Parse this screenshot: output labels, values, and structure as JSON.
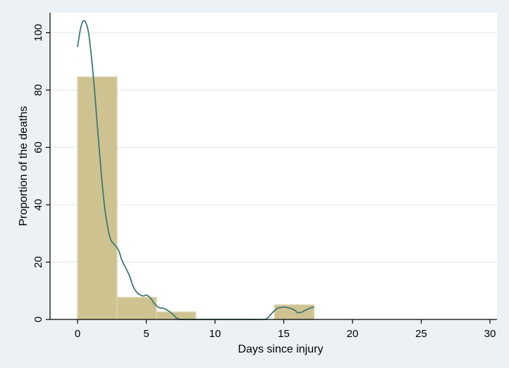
{
  "chart_data": {
    "type": "bar",
    "subtype": "histogram-with-density-line",
    "xlabel": "Days since injury",
    "ylabel": "Proportion of the deaths",
    "xlim": [
      -2,
      30
    ],
    "ylim": [
      0,
      105
    ],
    "xticks": [
      0,
      5,
      10,
      15,
      20,
      25,
      30
    ],
    "yticks": [
      0,
      20,
      40,
      60,
      80,
      100
    ],
    "grid": true,
    "bins": [
      {
        "x0": 0,
        "x1": 2.87,
        "value": 84.6
      },
      {
        "x0": 2.87,
        "x1": 5.73,
        "value": 7.7
      },
      {
        "x0": 5.73,
        "x1": 8.6,
        "value": 2.6
      },
      {
        "x0": 14.33,
        "x1": 17.2,
        "value": 5.1
      }
    ],
    "density_line": {
      "x": [
        0,
        0.2,
        0.4,
        0.6,
        0.8,
        1.0,
        1.2,
        1.4,
        1.6,
        1.8,
        2.0,
        2.2,
        2.4,
        2.6,
        2.8,
        3.0,
        3.2,
        3.5,
        3.8,
        4.0,
        4.3,
        4.6,
        4.8,
        5.0,
        5.3,
        5.6,
        5.9,
        6.3,
        6.6,
        7.0,
        7.2,
        7.5,
        8,
        10,
        12,
        13.5,
        13.8,
        14.2,
        14.6,
        15.0,
        15.4,
        15.8,
        16.0,
        16.3,
        16.6,
        17.0,
        17.2
      ],
      "y": [
        95,
        101,
        104,
        103.5,
        100,
        92,
        82,
        70,
        58,
        47,
        38,
        32,
        28,
        26.5,
        25.5,
        24,
        21,
        18,
        15,
        12,
        9.5,
        8.5,
        8.2,
        8.5,
        7.5,
        5.5,
        4.2,
        3.8,
        3.0,
        1.5,
        0.5,
        0,
        0,
        0,
        0,
        0,
        0.4,
        2.5,
        4,
        4.3,
        4.0,
        3.2,
        2.4,
        2.5,
        3.3,
        4.1,
        4.3
      ]
    },
    "colors": {
      "bar_fill": "#cfc291",
      "bar_stroke": "#dcd4ad",
      "line": "#3d7a72",
      "plot_bg": "#ffffff",
      "page_bg": "#ebf1f5",
      "grid": "#e4ecf0",
      "axis": "#000000"
    }
  }
}
